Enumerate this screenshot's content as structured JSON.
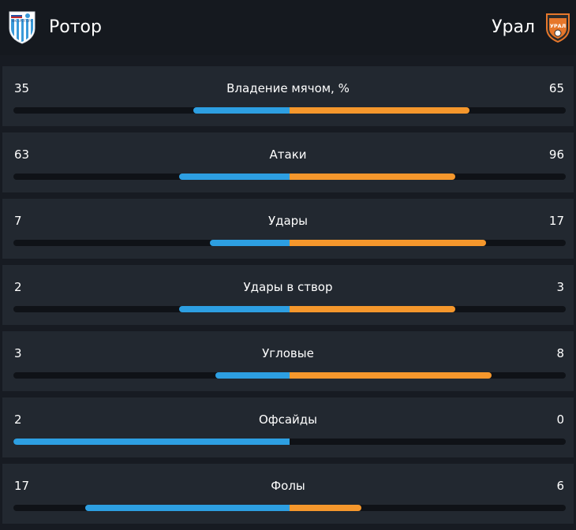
{
  "match": {
    "home": {
      "name": "Ротор",
      "logo": "rotor-logo",
      "logo_text": "ФК «РОТОР»"
    },
    "away": {
      "name": "Урал",
      "logo": "ural-logo",
      "logo_text": "УРАЛ"
    }
  },
  "colors": {
    "home_bar": "#2d9fe2",
    "away_bar": "#f5972c",
    "row_bg": "#222830",
    "page_bg": "#171b22"
  },
  "stats": [
    {
      "label": "Владение мячом, %",
      "home": "35",
      "away": "65",
      "home_share": 0.35,
      "away_share": 0.65
    },
    {
      "label": "Атаки",
      "home": "63",
      "away": "96",
      "home_share": 0.4,
      "away_share": 0.6
    },
    {
      "label": "Удары",
      "home": "7",
      "away": "17",
      "home_share": 0.29,
      "away_share": 0.71
    },
    {
      "label": "Удары в створ",
      "home": "2",
      "away": "3",
      "home_share": 0.4,
      "away_share": 0.6
    },
    {
      "label": "Угловые",
      "home": "3",
      "away": "8",
      "home_share": 0.27,
      "away_share": 0.73
    },
    {
      "label": "Офсайды",
      "home": "2",
      "away": "0",
      "home_share": 1.0,
      "away_share": 0.0
    },
    {
      "label": "Фолы",
      "home": "17",
      "away": "6",
      "home_share": 0.74,
      "away_share": 0.26
    }
  ]
}
